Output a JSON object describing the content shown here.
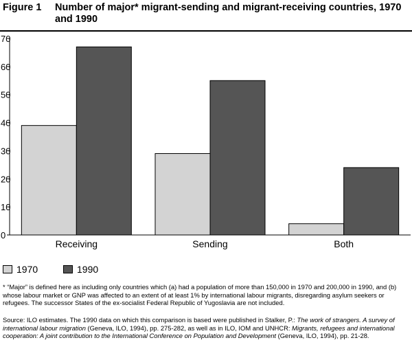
{
  "figure": {
    "label": "Figure 1",
    "title": "Number of major* migrant-sending and migrant-receiving countries, 1970 and 1990"
  },
  "chart_data": {
    "type": "bar",
    "categories": [
      "Receiving",
      "Sending",
      "Both"
    ],
    "series": [
      {
        "name": "1970",
        "values": [
          39,
          29,
          4
        ],
        "color": "#d3d3d3"
      },
      {
        "name": "1990",
        "values": [
          67,
          55,
          24
        ],
        "color": "#555555"
      }
    ],
    "yticks": [
      0,
      10,
      20,
      30,
      40,
      50,
      60,
      70
    ],
    "ylim": [
      0,
      70
    ],
    "grid": false,
    "legend": "bottom-left",
    "bar_stroke": "#000000"
  },
  "footnote": "* “Major”  is defined here as including only countries which (a) had a population of more than 150,000 in 1970 and 200,000 in 1990, and (b) whose labour market or GNP was affected to an extent of at least 1% by international labour migrants, disregarding asylum seekers or refugees. The successor States of the ex-socialist Federal Republic of Yugoslavia are not included.",
  "source": {
    "p1": "Source: ILO estimates. The 1990 data on which this comparison is based were published in Stalker, P.: ",
    "p2": "The work of strangers. A survey of international labour migration",
    "p3": " (Geneva, ILO, 1994), pp. 275-282, as well as in ILO, IOM and UNHCR: ",
    "p4": "Migrants, refugees and international cooperation: A joint contribution to the International Conference on Population and Development",
    "p5": " (Geneva, ILO, 1994), pp. 21-28."
  }
}
